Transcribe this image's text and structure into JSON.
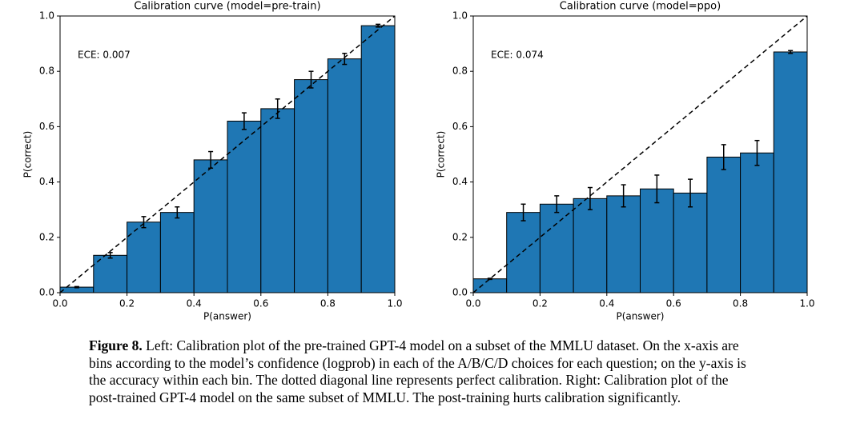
{
  "chart_data": [
    {
      "type": "histogram",
      "title": "Calibration curve (model=pre-train)",
      "xlabel": "P(answer)",
      "ylabel": "P(correct)",
      "annotation": "ECE: 0.007",
      "bins": [
        0,
        0.1,
        0.2,
        0.3,
        0.4,
        0.5,
        0.6,
        0.7,
        0.8,
        0.9,
        1.0
      ],
      "values": [
        0.02,
        0.135,
        0.255,
        0.29,
        0.48,
        0.62,
        0.665,
        0.77,
        0.845,
        0.965
      ],
      "errors": [
        0.002,
        0.01,
        0.02,
        0.02,
        0.03,
        0.03,
        0.035,
        0.03,
        0.02,
        0.005
      ],
      "color": "#1f77b4",
      "xlim": [
        0,
        1
      ],
      "ylim": [
        0,
        1
      ],
      "xticks": [
        {
          "value": 0,
          "label": "0.0"
        },
        0.2,
        0.4,
        0.6,
        0.8,
        {
          "value": 1,
          "label": "1.0"
        }
      ],
      "yticks": [
        {
          "value": 0,
          "label": "0.0"
        },
        0.2,
        0.4,
        0.6,
        0.8,
        {
          "value": 1,
          "label": "1.0"
        }
      ]
    },
    {
      "type": "histogram",
      "title": "Calibration curve (model=ppo)",
      "xlabel": "P(answer)",
      "ylabel": "P(correct)",
      "annotation": "ECE: 0.074",
      "bins": [
        0,
        0.1,
        0.2,
        0.3,
        0.4,
        0.5,
        0.6,
        0.7,
        0.8,
        0.9,
        1.0
      ],
      "values": [
        0.05,
        0.29,
        0.32,
        0.34,
        0.35,
        0.375,
        0.36,
        0.49,
        0.505,
        0.87
      ],
      "errors": [
        0.002,
        0.03,
        0.03,
        0.04,
        0.04,
        0.05,
        0.05,
        0.045,
        0.045,
        0.005
      ],
      "color": "#1f77b4",
      "xlim": [
        0,
        1
      ],
      "ylim": [
        0,
        1
      ],
      "xticks": [
        {
          "value": 0,
          "label": "0.0"
        },
        0.2,
        0.4,
        0.6,
        0.8,
        {
          "value": 1,
          "label": "1.0"
        }
      ],
      "yticks": [
        {
          "value": 0,
          "label": "0.0"
        },
        0.2,
        0.4,
        0.6,
        0.8,
        {
          "value": 1,
          "label": "1.0"
        }
      ]
    }
  ],
  "caption": {
    "label": "Figure 8.",
    "text": "Left: Calibration plot of the pre-trained GPT-4 model on a subset of the MMLU dataset. On the x-axis are bins according to the model’s confidence (logprob) in each of the A/B/C/D choices for each question; on the y-axis is the accuracy within each bin. The dotted diagonal line represents perfect calibration. Right: Calibration plot of the post-trained GPT-4 model on the same subset of MMLU. The post-training hurts calibration significantly."
  }
}
